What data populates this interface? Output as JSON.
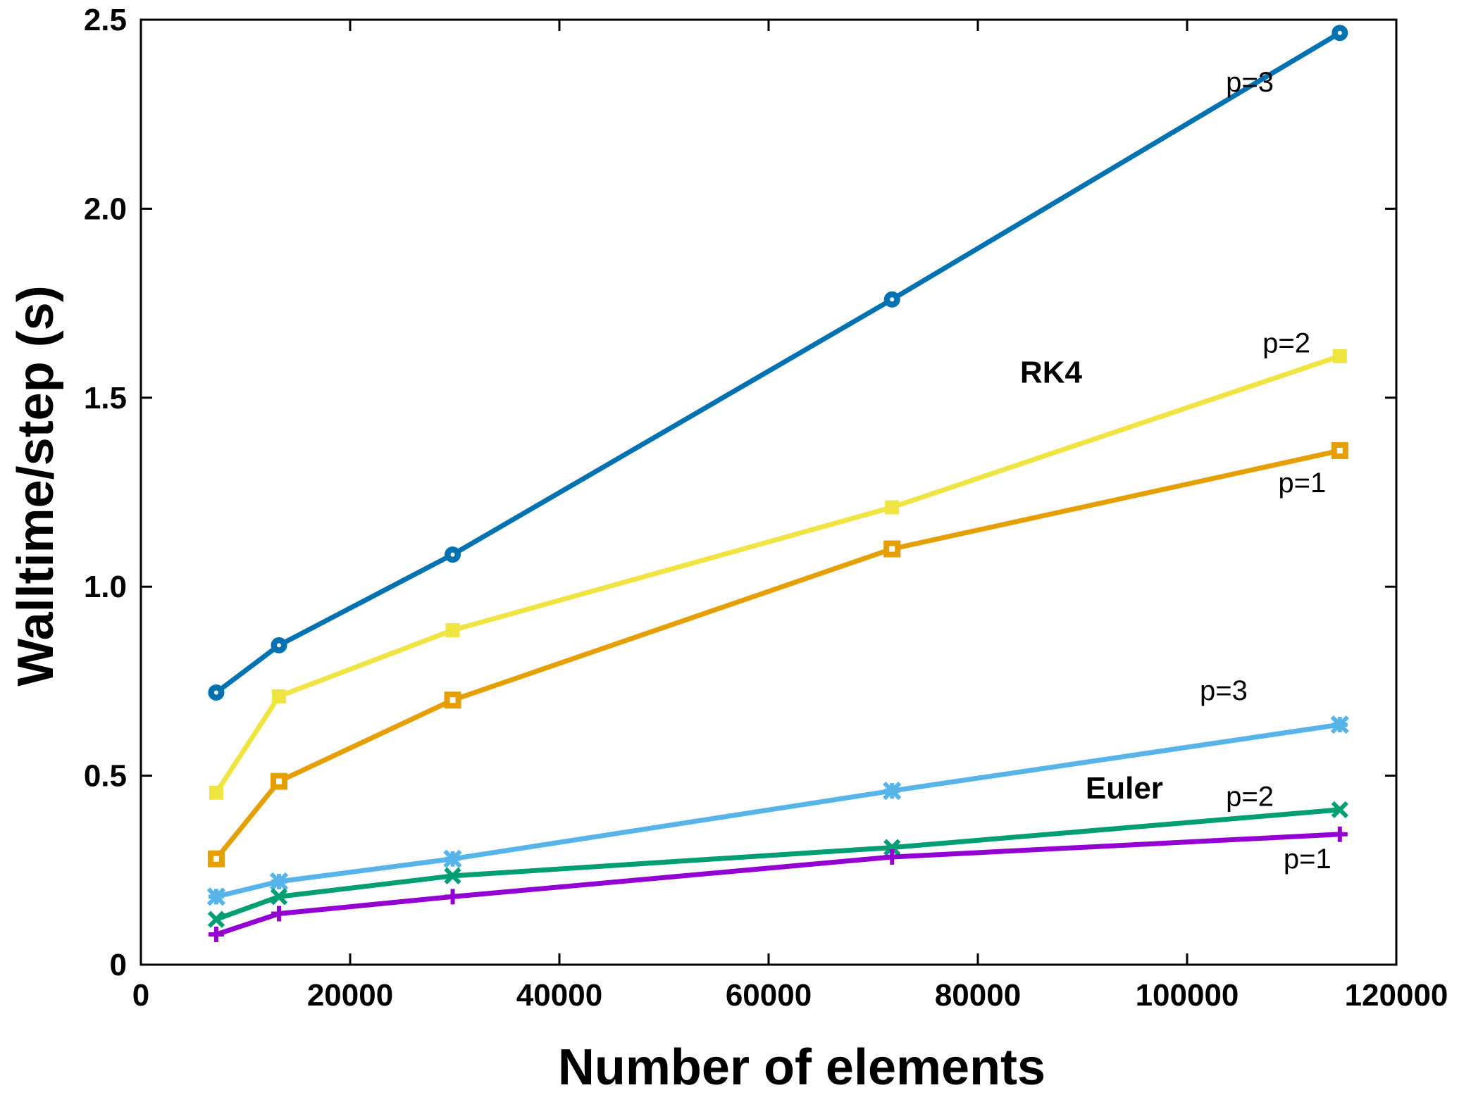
{
  "chart_data": {
    "type": "line",
    "xlabel": "Number of elements",
    "ylabel": "Walltime/step (s)",
    "xlim": [
      0,
      120000
    ],
    "ylim": [
      0,
      2.5
    ],
    "x_ticks": [
      0,
      20000,
      40000,
      60000,
      80000,
      100000,
      120000
    ],
    "x_tick_labels": [
      "0",
      "20000",
      "40000",
      "60000",
      "80000",
      "100000",
      "120000"
    ],
    "y_ticks": [
      0,
      0.5,
      1.0,
      1.5,
      2.0,
      2.5
    ],
    "y_tick_labels": [
      "0",
      "0.5",
      "1.0",
      "1.5",
      "2.0",
      "2.5"
    ],
    "grid": false,
    "x": [
      7200,
      13200,
      29800,
      71800,
      114600
    ],
    "series": [
      {
        "name": "p=3",
        "group": "RK4",
        "marker": "circle",
        "color": "#0072b2",
        "values": [
          0.72,
          0.845,
          1.085,
          1.76,
          2.465
        ]
      },
      {
        "name": "p=2",
        "group": "RK4",
        "marker": "filled-square",
        "color": "#f0e442",
        "values": [
          0.455,
          0.71,
          0.885,
          1.21,
          1.61
        ]
      },
      {
        "name": "p=1",
        "group": "RK4",
        "marker": "open-square",
        "color": "#e69f00",
        "values": [
          0.28,
          0.485,
          0.7,
          1.1,
          1.36
        ]
      },
      {
        "name": "p=3",
        "group": "Euler",
        "marker": "star",
        "color": "#56b4e9",
        "values": [
          0.18,
          0.22,
          0.28,
          0.46,
          0.635
        ]
      },
      {
        "name": "p=2",
        "group": "Euler",
        "marker": "x",
        "color": "#009e73",
        "values": [
          0.12,
          0.18,
          0.235,
          0.31,
          0.41
        ]
      },
      {
        "name": "p=1",
        "group": "Euler",
        "marker": "plus",
        "color": "#9400d3",
        "values": [
          0.08,
          0.135,
          0.18,
          0.285,
          0.345
        ]
      }
    ],
    "annotations": [
      {
        "text": "RK4",
        "x": 87000,
        "y": 1.54,
        "bold": true
      },
      {
        "text": "Euler",
        "x": 94000,
        "y": 0.44,
        "bold": true
      },
      {
        "text": "p=3",
        "x": 106000,
        "y": 2.31,
        "series": 0
      },
      {
        "text": "p=2",
        "x": 109500,
        "y": 1.62,
        "series": 1
      },
      {
        "text": "p=1",
        "x": 111000,
        "y": 1.25,
        "series": 2
      },
      {
        "text": "p=3",
        "x": 103500,
        "y": 0.7,
        "series": 3
      },
      {
        "text": "p=2",
        "x": 106000,
        "y": 0.42,
        "series": 4
      },
      {
        "text": "p=1",
        "x": 111500,
        "y": 0.255,
        "series": 5
      }
    ]
  }
}
